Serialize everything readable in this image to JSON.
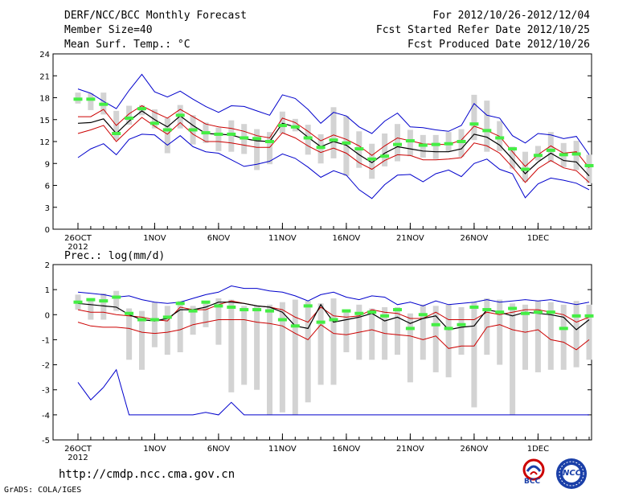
{
  "header": {
    "title": "DERF/NCC/BCC Monthly Forecast",
    "member": "Member Size=40",
    "period": "For 2012/10/26-2012/12/04",
    "started": "Fcst Started Refer Date 2012/10/25",
    "produced": "Fcst Produced Date 2012/10/26"
  },
  "footer": {
    "url": "http://cmdp.ncc.cma.gov.cn",
    "grads": "GrADS: COLA/IGES",
    "logo_bcc": "BCC",
    "logo_ncc": "NCC"
  },
  "colors": {
    "max_min": "#0000cc",
    "spread": "#cc0000",
    "mean": "#000000",
    "median": "#44ee44",
    "box": "#d3d3d3"
  },
  "chart_data": [
    {
      "type": "line",
      "title": "Mean Surf. Temp.: °C",
      "ylim": [
        0,
        24
      ],
      "yticks": [
        "0",
        "3",
        "6",
        "9",
        "12",
        "15",
        "18",
        "21",
        "24"
      ],
      "xticks": [
        {
          "day": 0,
          "label": "26OCT",
          "sub": "2012"
        },
        {
          "day": 6,
          "label": "1NOV"
        },
        {
          "day": 11,
          "label": "6NOV"
        },
        {
          "day": 16,
          "label": "11NOV"
        },
        {
          "day": 21,
          "label": "16NOV"
        },
        {
          "day": 26,
          "label": "21NOV"
        },
        {
          "day": 31,
          "label": "26NOV"
        },
        {
          "day": 36,
          "label": "1DEC"
        }
      ],
      "series": [
        {
          "name": "max",
          "values": [
            19.2,
            18.6,
            17.5,
            16.5,
            19.0,
            21.2,
            18.8,
            18.1,
            18.9,
            17.8,
            16.8,
            16.0,
            16.9,
            16.8,
            16.2,
            15.6,
            18.4,
            17.9,
            16.4,
            14.5,
            16.0,
            15.5,
            14.0,
            13.1,
            14.8,
            15.9,
            14.0,
            13.9,
            13.6,
            13.4,
            14.2,
            17.2,
            15.6,
            15.2,
            12.8,
            11.8,
            13.1,
            12.9,
            12.4,
            12.7,
            10.2
          ]
        },
        {
          "name": "upper",
          "values": [
            15.4,
            15.4,
            16.4,
            14.2,
            15.8,
            16.9,
            16.0,
            15.2,
            16.4,
            15.4,
            14.4,
            14.0,
            13.8,
            13.4,
            12.8,
            12.5,
            15.2,
            14.6,
            13.4,
            12.1,
            12.9,
            12.3,
            11.4,
            10.1,
            11.4,
            12.5,
            12.1,
            11.7,
            11.6,
            11.6,
            12.2,
            14.1,
            13.5,
            12.7,
            10.6,
            8.6,
            10.2,
            11.4,
            10.4,
            10.6,
            8.4
          ]
        },
        {
          "name": "mean",
          "values": [
            14.5,
            14.6,
            15.1,
            13.1,
            14.8,
            16.2,
            15.0,
            14.0,
            15.5,
            14.2,
            13.1,
            13.0,
            12.9,
            12.4,
            12.1,
            12.0,
            14.5,
            14.0,
            12.6,
            11.3,
            12.0,
            11.5,
            10.2,
            9.1,
            10.4,
            11.3,
            11.0,
            10.7,
            10.6,
            10.6,
            11.0,
            13.0,
            12.6,
            11.5,
            9.6,
            7.6,
            9.2,
            10.4,
            9.4,
            9.2,
            7.3
          ]
        },
        {
          "name": "lower",
          "values": [
            13.1,
            13.6,
            14.2,
            12.0,
            13.7,
            15.3,
            14.1,
            13.0,
            14.6,
            13.0,
            12.0,
            12.0,
            11.8,
            11.5,
            11.2,
            11.2,
            13.2,
            12.5,
            11.4,
            10.5,
            11.1,
            10.4,
            9.1,
            8.2,
            9.4,
            10.2,
            10.1,
            9.5,
            9.5,
            9.6,
            9.8,
            11.8,
            11.4,
            10.4,
            8.5,
            6.4,
            8.3,
            9.4,
            8.4,
            8.0,
            6.4
          ]
        },
        {
          "name": "min",
          "values": [
            9.8,
            11.0,
            11.7,
            10.2,
            12.3,
            13.0,
            12.9,
            11.5,
            12.8,
            11.3,
            10.6,
            10.4,
            9.5,
            8.6,
            8.9,
            9.3,
            10.3,
            9.7,
            8.5,
            7.1,
            8.0,
            7.4,
            5.4,
            4.2,
            6.1,
            7.4,
            7.5,
            6.5,
            7.6,
            8.1,
            7.2,
            9.0,
            9.6,
            8.2,
            7.6,
            4.3,
            6.2,
            7.0,
            6.7,
            6.3,
            5.4
          ]
        },
        {
          "name": "median",
          "values": [
            17.8,
            17.8,
            17.1,
            13.1,
            15.2,
            16.5,
            14.5,
            13.6,
            15.6,
            13.6,
            13.2,
            13.0,
            13.0,
            12.5,
            12.4,
            12.0,
            14.2,
            14.0,
            12.5,
            11.2,
            12.2,
            11.8,
            11.0,
            9.6,
            10.0,
            11.6,
            12.1,
            11.5,
            11.6,
            11.7,
            12.0,
            14.4,
            13.5,
            12.5,
            11.0,
            8.2,
            10.1,
            10.8,
            10.2,
            10.3,
            8.7
          ]
        },
        {
          "name": "box_high",
          "values": [
            18.7,
            18.6,
            18.7,
            16.2,
            16.9,
            17.0,
            16.4,
            15.2,
            17.0,
            15.6,
            14.6,
            13.9,
            14.9,
            14.4,
            13.7,
            13.3,
            16.1,
            15.1,
            14.3,
            13.0,
            16.7,
            15.5,
            13.4,
            11.7,
            13.1,
            14.4,
            13.6,
            12.9,
            12.9,
            13.3,
            13.7,
            18.4,
            17.6,
            14.8,
            11.3,
            10.6,
            11.4,
            13.3,
            11.8,
            12.1,
            10.2
          ]
        },
        {
          "name": "box_low",
          "values": [
            17.2,
            16.3,
            15.7,
            12.2,
            14.3,
            15.6,
            13.8,
            10.4,
            13.8,
            11.6,
            11.8,
            10.7,
            10.6,
            10.3,
            8.1,
            8.9,
            13.1,
            13.4,
            10.2,
            9.0,
            9.7,
            7.3,
            8.4,
            6.9,
            8.6,
            9.3,
            10.0,
            9.8,
            9.6,
            10.6,
            9.9,
            12.2,
            10.6,
            10.7,
            8.3,
            6.5,
            9.4,
            9.2,
            8.5,
            8.1,
            6.3
          ]
        }
      ]
    },
    {
      "type": "line",
      "title": "Prec.: log(mm/d)",
      "ylim": [
        -5,
        2
      ],
      "yticks": [
        "-5",
        "-4",
        "-3",
        "-2",
        "-1",
        "0",
        "1",
        "2"
      ],
      "xticks": [
        {
          "day": 0,
          "label": "26OCT",
          "sub": "2012"
        },
        {
          "day": 6,
          "label": "1NOV"
        },
        {
          "day": 11,
          "label": "6NOV"
        },
        {
          "day": 16,
          "label": "11NOV"
        },
        {
          "day": 21,
          "label": "16NOV"
        },
        {
          "day": 26,
          "label": "21NOV"
        },
        {
          "day": 31,
          "label": "26NOV"
        },
        {
          "day": 36,
          "label": "1DEC"
        }
      ],
      "series": [
        {
          "name": "max",
          "values": [
            0.9,
            0.85,
            0.8,
            0.7,
            0.75,
            0.6,
            0.5,
            0.45,
            0.5,
            0.65,
            0.8,
            0.9,
            1.15,
            1.05,
            1.05,
            0.95,
            0.9,
            0.75,
            0.55,
            0.8,
            0.9,
            0.7,
            0.6,
            0.75,
            0.7,
            0.4,
            0.5,
            0.35,
            0.55,
            0.4,
            0.45,
            0.5,
            0.6,
            0.5,
            0.55,
            0.6,
            0.55,
            0.6,
            0.5,
            0.4,
            0.5
          ]
        },
        {
          "name": "upper",
          "values": [
            0.2,
            0.1,
            0.1,
            0.0,
            -0.05,
            -0.1,
            -0.2,
            -0.25,
            0.3,
            0.2,
            0.2,
            0.4,
            0.55,
            0.45,
            0.35,
            0.3,
            0.2,
            -0.1,
            -0.3,
            0.3,
            -0.05,
            -0.1,
            -0.05,
            0.2,
            0.1,
            0.05,
            -0.15,
            -0.15,
            0.1,
            -0.2,
            -0.2,
            -0.2,
            0.1,
            0.0,
            0.1,
            0.2,
            0.2,
            0.1,
            0.0,
            -0.3,
            -0.1
          ]
        },
        {
          "name": "mean",
          "values": [
            0.45,
            0.4,
            0.35,
            0.3,
            0.0,
            -0.2,
            -0.25,
            -0.15,
            0.2,
            0.2,
            0.3,
            0.5,
            0.5,
            0.45,
            0.35,
            0.3,
            0.1,
            -0.45,
            -0.55,
            0.4,
            -0.3,
            -0.2,
            -0.1,
            0.05,
            -0.25,
            -0.1,
            -0.35,
            -0.15,
            -0.05,
            -0.6,
            -0.5,
            -0.45,
            0.2,
            0.1,
            -0.05,
            0.1,
            0.05,
            0.0,
            -0.1,
            -0.6,
            -0.2
          ]
        },
        {
          "name": "lower",
          "values": [
            -0.3,
            -0.45,
            -0.5,
            -0.5,
            -0.55,
            -0.7,
            -0.75,
            -0.7,
            -0.6,
            -0.4,
            -0.3,
            -0.2,
            -0.2,
            -0.2,
            -0.3,
            -0.35,
            -0.45,
            -0.75,
            -1.0,
            -0.4,
            -0.75,
            -0.8,
            -0.7,
            -0.6,
            -0.75,
            -0.8,
            -0.85,
            -1.0,
            -0.85,
            -1.35,
            -1.25,
            -1.25,
            -0.5,
            -0.4,
            -0.6,
            -0.7,
            -0.6,
            -1.0,
            -1.1,
            -1.4,
            -1.0
          ]
        },
        {
          "name": "min",
          "values": [
            -2.7,
            -3.4,
            -2.9,
            -2.2,
            -4.0,
            -4.0,
            -4.0,
            -4.0,
            -4.0,
            -4.0,
            -3.9,
            -4.0,
            -3.5,
            -4.0,
            -4.0,
            -4.0,
            -4.0,
            -4.0,
            -4.0,
            -4.0,
            -4.0,
            -4.0,
            -4.0,
            -4.0,
            -4.0,
            -4.0,
            -4.0,
            -4.0,
            -4.0,
            -4.0,
            -4.0,
            -4.0,
            -4.0,
            -4.0,
            -4.0,
            -4.0,
            -4.0,
            -4.0,
            -4.0,
            -4.0,
            -4.0
          ]
        },
        {
          "name": "median",
          "values": [
            0.5,
            0.6,
            0.55,
            0.7,
            0.05,
            -0.2,
            -0.2,
            -0.1,
            0.45,
            0.15,
            0.5,
            0.35,
            0.3,
            0.2,
            0.2,
            0.15,
            -0.2,
            -0.45,
            0.35,
            -0.3,
            -0.2,
            0.15,
            0.05,
            0.1,
            -0.05,
            0.2,
            -0.55,
            0.0,
            -0.4,
            -0.55,
            -0.4,
            0.3,
            0.2,
            0.1,
            0.25,
            0.05,
            0.1,
            0.1,
            -0.55,
            -0.05,
            -0.05
          ]
        },
        {
          "name": "box_high",
          "values": [
            0.8,
            0.65,
            0.85,
            0.95,
            0.25,
            0.15,
            0.5,
            0.35,
            0.55,
            0.35,
            0.45,
            0.65,
            0.6,
            0.35,
            0.35,
            0.4,
            0.5,
            0.6,
            0.55,
            0.45,
            0.65,
            0.1,
            0.4,
            0.25,
            0.3,
            0.3,
            0.05,
            0.4,
            0.35,
            0.4,
            0.3,
            0.5,
            0.65,
            0.6,
            0.45,
            0.4,
            0.55,
            0.5,
            0.4,
            0.55,
            0.4
          ]
        },
        {
          "name": "box_low",
          "values": [
            0.2,
            -0.2,
            -0.2,
            0.15,
            -1.8,
            -2.2,
            -1.3,
            -1.6,
            -1.5,
            -0.8,
            -0.5,
            -1.2,
            -3.1,
            -2.8,
            -3.0,
            -4.0,
            -3.9,
            -4.0,
            -3.5,
            -2.8,
            -2.8,
            -1.5,
            -1.8,
            -1.8,
            -1.8,
            -1.6,
            -2.7,
            -1.8,
            -2.3,
            -2.5,
            -1.6,
            -3.7,
            -1.6,
            -2.0,
            -4.0,
            -2.2,
            -2.3,
            -2.2,
            -2.2,
            -2.1,
            -1.8
          ]
        }
      ]
    }
  ]
}
